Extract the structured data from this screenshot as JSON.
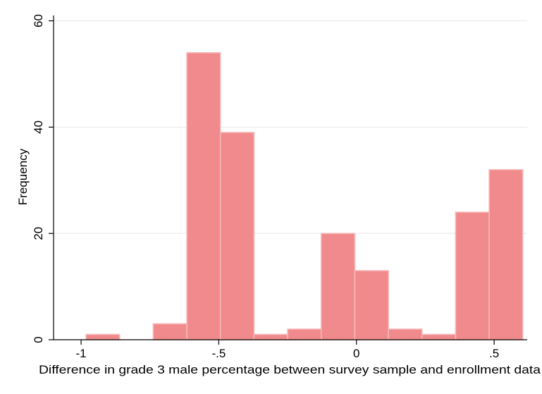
{
  "chart_data": {
    "type": "bar",
    "subtype": "histogram",
    "title": "",
    "xlabel": "Difference in grade 3 male percentage between survey sample and enrollment data",
    "ylabel": "Frequency",
    "xlim": [
      -1.1,
      0.62
    ],
    "ylim": [
      0,
      61
    ],
    "x_ticks": [
      -1,
      -0.5,
      0,
      0.5
    ],
    "x_tick_labels": [
      "-1",
      "-.5",
      "0",
      ".5"
    ],
    "y_ticks": [
      0,
      20,
      40,
      60
    ],
    "y_tick_labels": [
      "0",
      "20",
      "40",
      "60"
    ],
    "grid": "horizontal",
    "bar_color": "#f08a8c",
    "bar_edge_color": "#f6b8b9",
    "bins": [
      {
        "start": -0.982,
        "end": -0.86,
        "count": 1
      },
      {
        "start": -0.86,
        "end": -0.738,
        "count": 0
      },
      {
        "start": -0.738,
        "end": -0.616,
        "count": 3
      },
      {
        "start": -0.616,
        "end": -0.494,
        "count": 54
      },
      {
        "start": -0.494,
        "end": -0.372,
        "count": 39
      },
      {
        "start": -0.372,
        "end": -0.25,
        "count": 1
      },
      {
        "start": -0.25,
        "end": -0.128,
        "count": 2
      },
      {
        "start": -0.128,
        "end": -0.006,
        "count": 20
      },
      {
        "start": -0.006,
        "end": 0.116,
        "count": 13
      },
      {
        "start": 0.116,
        "end": 0.238,
        "count": 2
      },
      {
        "start": 0.238,
        "end": 0.36,
        "count": 1
      },
      {
        "start": 0.36,
        "end": 0.482,
        "count": 24
      },
      {
        "start": 0.482,
        "end": 0.604,
        "count": 32
      }
    ]
  }
}
